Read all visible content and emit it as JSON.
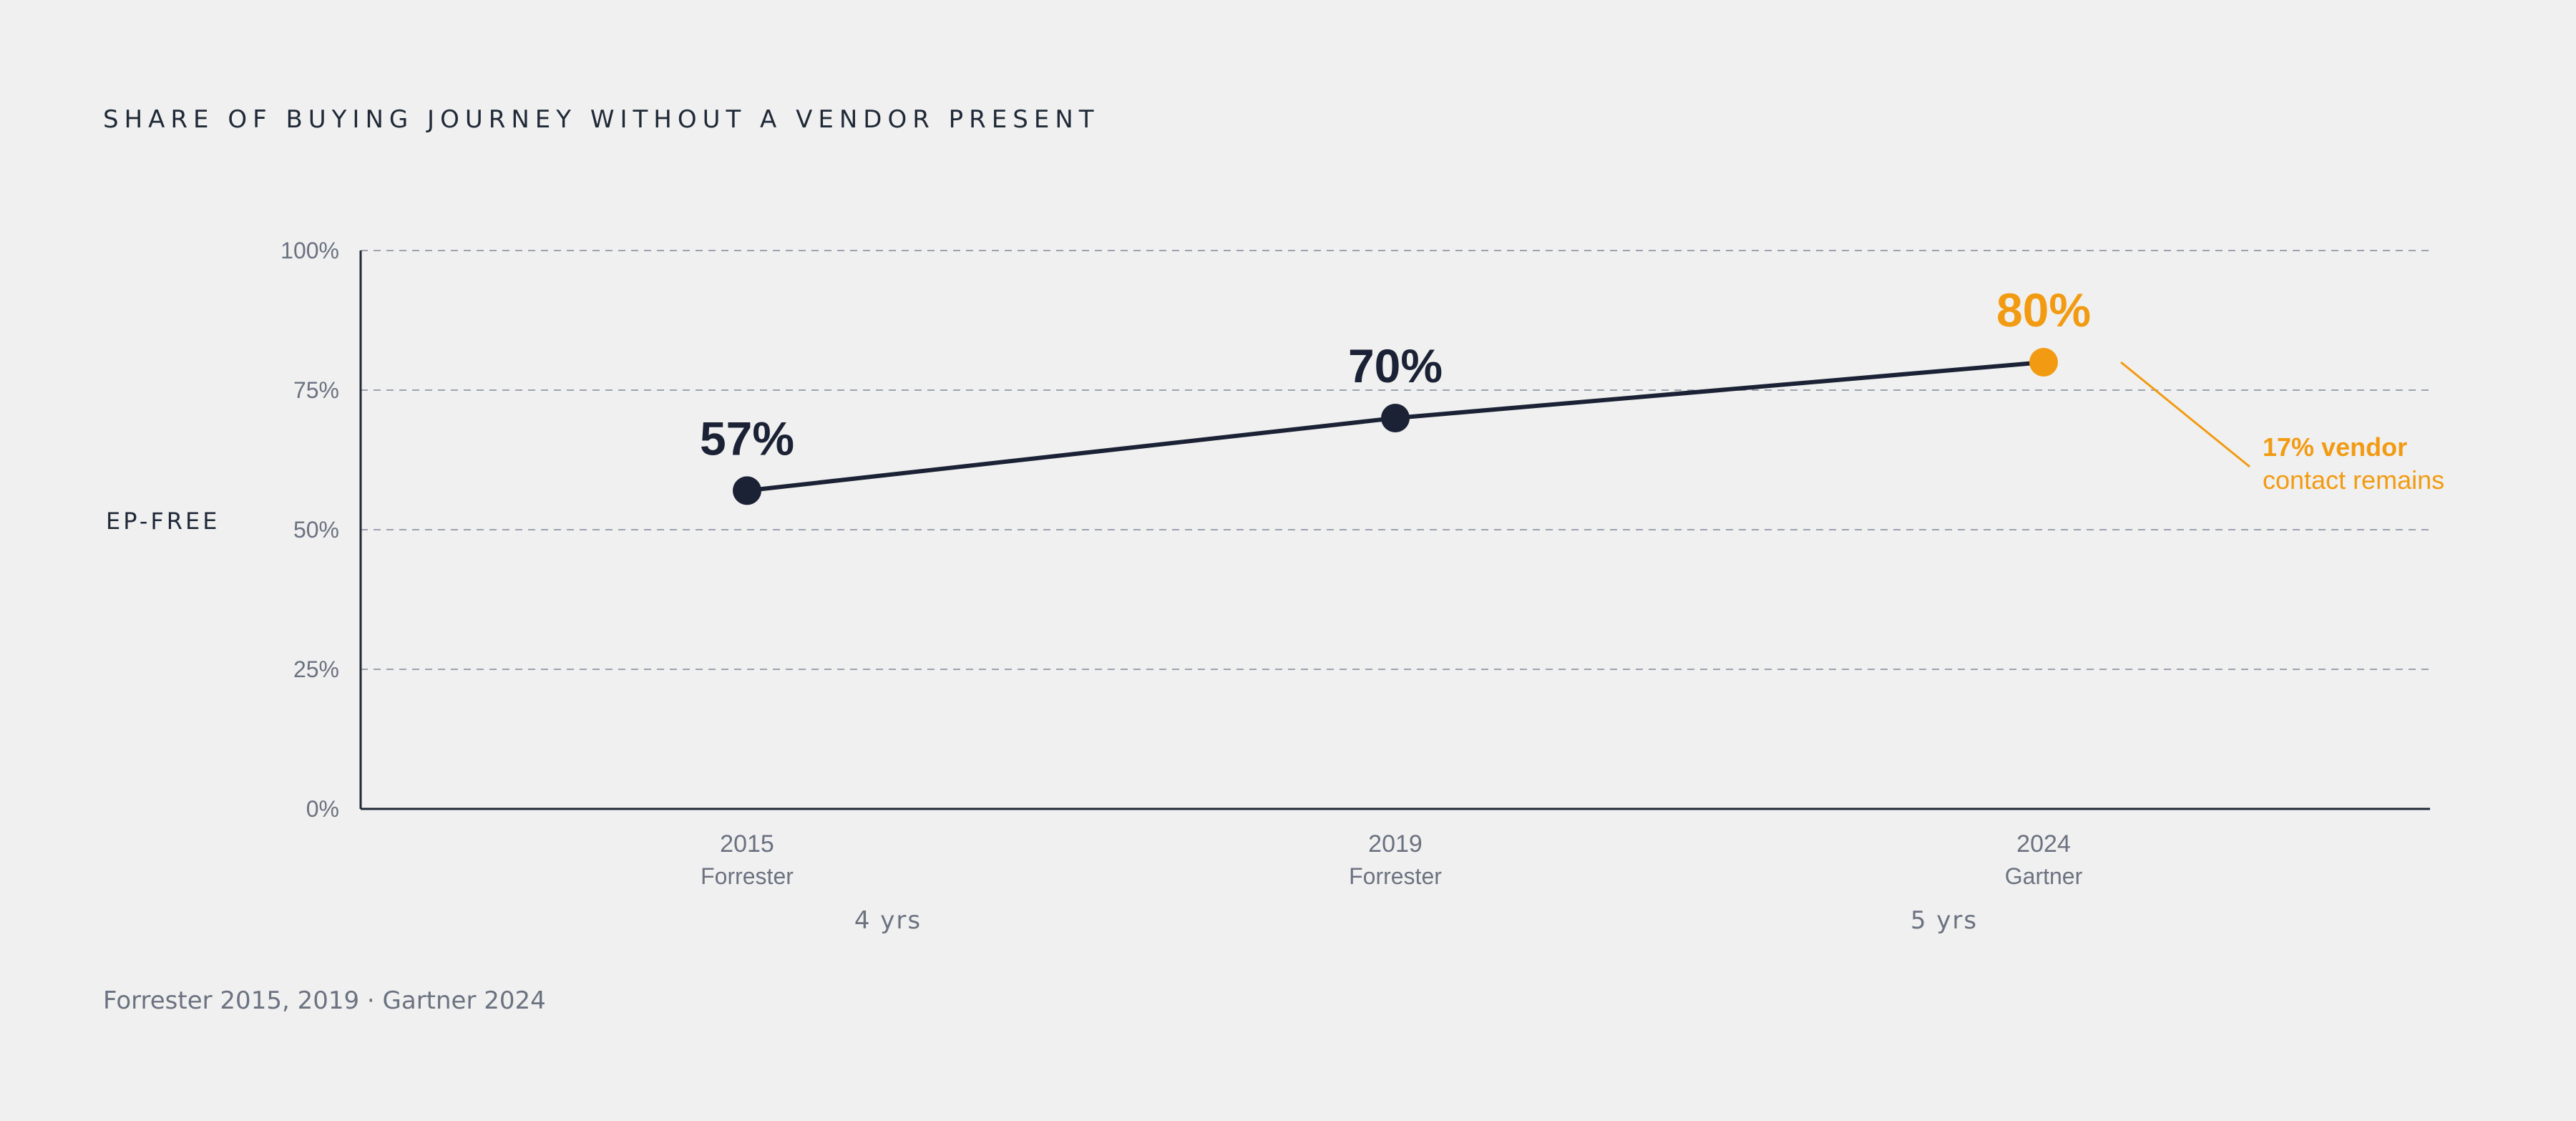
{
  "chart_data": {
    "type": "line",
    "title": "SHARE OF BUYING JOURNEY WITHOUT A VENDOR PRESENT",
    "ylabel": "EP-FREE",
    "ylim": [
      0,
      100
    ],
    "yticks": [
      0,
      25,
      50,
      75,
      100
    ],
    "ytick_labels": [
      "0%",
      "25%",
      "50%",
      "75%",
      "100%"
    ],
    "grid": true,
    "points": [
      {
        "x": "2015",
        "source": "Forrester",
        "value": 57,
        "label": "57%",
        "highlight": false
      },
      {
        "x": "2019",
        "source": "Forrester",
        "value": 70,
        "label": "70%",
        "highlight": false
      },
      {
        "x": "2024",
        "source": "Gartner",
        "value": 80,
        "label": "80%",
        "highlight": true
      }
    ],
    "intervals": [
      "4 yrs",
      "5 yrs"
    ],
    "annotation": {
      "bold": "17% vendor",
      "rest": "contact remains"
    },
    "footer": "Forrester 2015, 2019 · Gartner 2024",
    "colors": {
      "series": "#1b2235",
      "highlight": "#f29b12",
      "grid": "#9ca3af",
      "axis": "#1f2937"
    }
  }
}
